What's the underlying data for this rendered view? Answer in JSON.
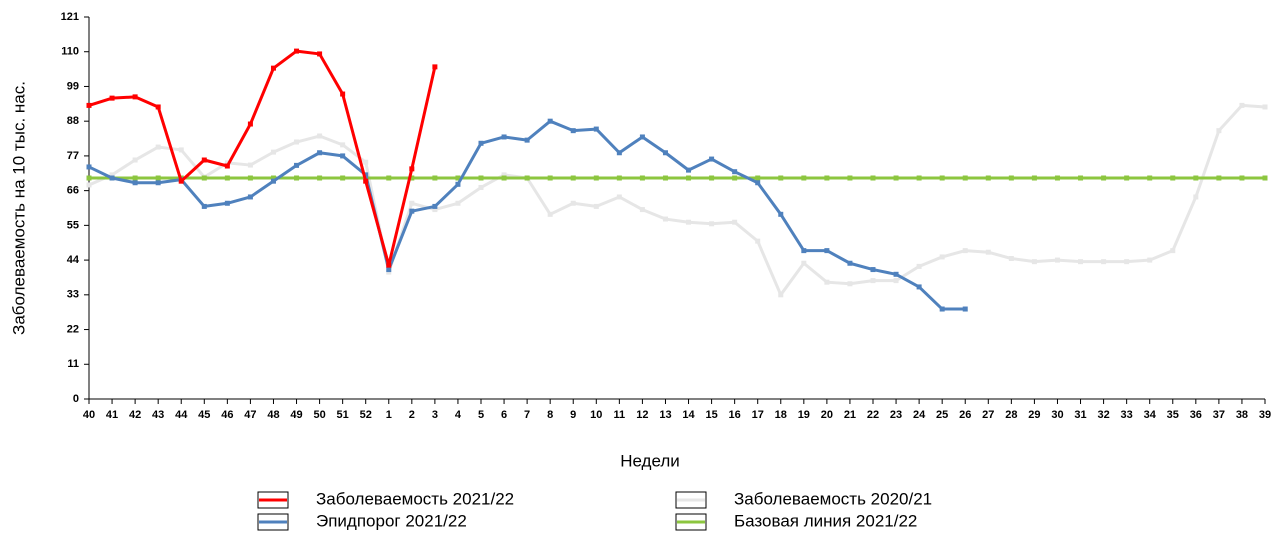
{
  "chart_data": {
    "type": "line",
    "x_label": "Недели",
    "y_label": "Заболеваемость на 10 тыс. нас.",
    "categories": [
      "40",
      "41",
      "42",
      "43",
      "44",
      "45",
      "46",
      "47",
      "48",
      "49",
      "50",
      "51",
      "52",
      "1",
      "2",
      "3",
      "4",
      "5",
      "6",
      "7",
      "8",
      "9",
      "10",
      "11",
      "12",
      "13",
      "14",
      "15",
      "16",
      "17",
      "18",
      "19",
      "20",
      "21",
      "22",
      "23",
      "24",
      "25",
      "26",
      "27",
      "28",
      "29",
      "30",
      "31",
      "32",
      "33",
      "34",
      "35",
      "36",
      "37",
      "38",
      "39"
    ],
    "ylim": [
      0,
      121
    ],
    "yticks": [
      0,
      11,
      22,
      33,
      44,
      55,
      66,
      77,
      88,
      99,
      110,
      121
    ],
    "series": [
      {
        "name": "Заболеваемость 2021/22",
        "color": "#ff0000",
        "values": [
          93,
          95.3,
          95.7,
          92.5,
          69,
          75.7,
          73.8,
          87.1,
          104.8,
          110.2,
          109.3,
          96.6,
          69,
          42.4,
          72.9,
          105.2,
          null,
          null,
          null,
          null,
          null,
          null,
          null,
          null,
          null,
          null,
          null,
          null,
          null,
          null,
          null,
          null,
          null,
          null,
          null,
          null,
          null,
          null,
          null,
          null,
          null,
          null,
          null,
          null,
          null,
          null,
          null,
          null,
          null,
          null,
          null,
          null
        ]
      },
      {
        "name": "Заболеваемость 2020/21",
        "color": "#e6e6e6",
        "values": [
          67.8,
          71,
          75.7,
          79.8,
          78.9,
          70.3,
          74.8,
          74.1,
          78.2,
          81.4,
          83.3,
          80.5,
          75,
          40.2,
          62,
          60,
          62,
          67,
          71,
          70,
          58.5,
          62,
          61,
          64,
          60,
          57,
          56,
          55.5,
          56,
          50,
          33,
          43,
          37,
          36.5,
          37.5,
          37.5,
          42,
          45,
          47,
          46.5,
          44.5,
          43.5,
          44,
          43.5,
          43.5,
          43.5,
          44,
          47,
          64,
          85,
          93,
          92.5
        ]
      },
      {
        "name": "Эпидпорог 2021/22",
        "color": "#4f81bd",
        "values": [
          73.5,
          70,
          68.5,
          68.5,
          69.5,
          61,
          62,
          64,
          69,
          74,
          78,
          77,
          71,
          41,
          59.5,
          61,
          68,
          81,
          83,
          82,
          88,
          85,
          85.5,
          78,
          83,
          78,
          72.5,
          76,
          72,
          68.5,
          58.5,
          47,
          47,
          43,
          41,
          39.5,
          35.5,
          28.5,
          28.5,
          null,
          null,
          null,
          null,
          null,
          null,
          null,
          null,
          null,
          null,
          null,
          null,
          null
        ]
      },
      {
        "name": "Базовая линия 2021/22",
        "color": "#8cc63f",
        "values": [
          70,
          70,
          70,
          70,
          70,
          70,
          70,
          70,
          70,
          70,
          70,
          70,
          70,
          70,
          70,
          70,
          70,
          70,
          70,
          70,
          70,
          70,
          70,
          70,
          70,
          70,
          70,
          70,
          70,
          70,
          70,
          70,
          70,
          70,
          70,
          70,
          70,
          70,
          70,
          70,
          70,
          70,
          70,
          70,
          70,
          70,
          70,
          70,
          70,
          70,
          70,
          70
        ]
      }
    ]
  }
}
